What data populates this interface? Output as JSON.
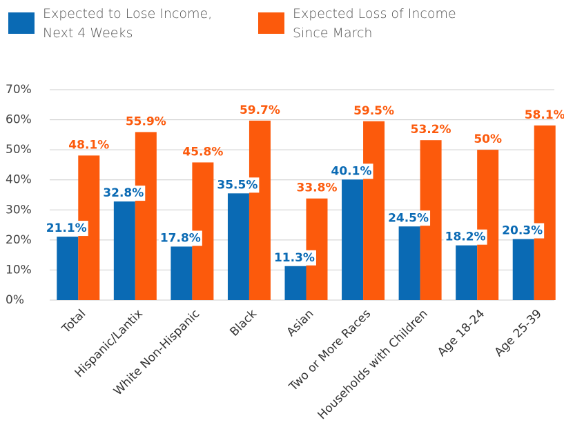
{
  "chart_data": {
    "type": "bar",
    "categories": [
      "Total",
      "Hispanic/Lantix",
      "White Non-Hispanic",
      "Black",
      "Asian",
      "Two or More Races",
      "Households with Children",
      "Age 18-24",
      "Age 25-39"
    ],
    "series": [
      {
        "name": "Expected to Lose Income, Next 4 Weeks",
        "color": "#0a6ab4",
        "values": [
          21.1,
          32.8,
          17.8,
          35.5,
          11.3,
          40.1,
          24.5,
          18.2,
          20.3
        ],
        "value_labels": [
          "21.1%",
          "32.8%",
          "17.8%",
          "35.5%",
          "11.3%",
          "40.1%",
          "24.5%",
          "18.2%",
          "20.3%"
        ]
      },
      {
        "name": "Expected Loss of Income Since March",
        "color": "#fc5a0c",
        "values": [
          48.1,
          55.9,
          45.8,
          59.7,
          33.8,
          59.5,
          53.2,
          50,
          58.1
        ],
        "value_labels": [
          "48.1%",
          "55.9%",
          "45.8%",
          "59.7%",
          "33.8%",
          "59.5%",
          "53.2%",
          "50%",
          "58.1%"
        ]
      }
    ],
    "ylim": [
      0,
      70
    ],
    "yticks": [
      {
        "value": 0,
        "label": "0%"
      },
      {
        "value": 10,
        "label": "10%"
      },
      {
        "value": 20,
        "label": "20%"
      },
      {
        "value": 30,
        "label": "30%"
      },
      {
        "value": 40,
        "label": "40%"
      },
      {
        "value": 50,
        "label": "50%"
      },
      {
        "value": 60,
        "label": "60%"
      },
      {
        "value": 70,
        "label": "70%"
      }
    ],
    "grid": true
  }
}
